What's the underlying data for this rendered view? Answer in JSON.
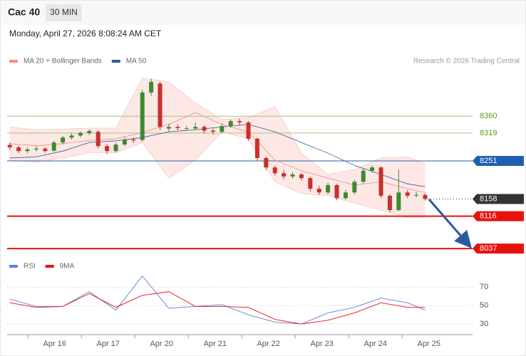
{
  "chart_data": {
    "type": "candlestick",
    "title": "Cac 40",
    "interval": "30 MIN",
    "subtitle": "Monday, April 27, 2026 8:08:24 AM CET",
    "attribution": "Research © 2026 Trading Central",
    "up_color": "#3c8a2e",
    "down_color": "#c8302a",
    "xlim": [
      -0.3,
      52.36
    ],
    "ylim": [
      8025,
      8470
    ],
    "xticks": [
      {
        "value": 5.08,
        "label": "Apr 16"
      },
      {
        "value": 11.13,
        "label": "Apr 17"
      },
      {
        "value": 17.18,
        "label": "Apr 20"
      },
      {
        "value": 23.23,
        "label": "Apr 21"
      },
      {
        "value": 29.27,
        "label": "Apr 22"
      },
      {
        "value": 35.32,
        "label": "Apr 23"
      },
      {
        "value": 41.37,
        "label": "Apr 24"
      },
      {
        "value": 47.42,
        "label": "Apr 25"
      }
    ],
    "candles": [
      [
        8290,
        8296,
        8278,
        8284
      ],
      [
        8284,
        8288,
        8270,
        8275
      ],
      [
        8275,
        8284,
        8270,
        8279
      ],
      [
        8279,
        8287,
        8274,
        8281
      ],
      [
        8281,
        8285,
        8271,
        8275
      ],
      [
        8276,
        8300,
        8273,
        8296
      ],
      [
        8296,
        8312,
        8292,
        8308
      ],
      [
        8308,
        8318,
        8303,
        8313
      ],
      [
        8313,
        8323,
        8309,
        8319
      ],
      [
        8319,
        8328,
        8314,
        8324
      ],
      [
        8322,
        8326,
        8282,
        8287
      ],
      [
        8287,
        8292,
        8268,
        8275
      ],
      [
        8275,
        8295,
        8272,
        8291
      ],
      [
        8291,
        8309,
        8287,
        8303
      ],
      [
        8303,
        8308,
        8295,
        8301
      ],
      [
        8302,
        8425,
        8298,
        8418
      ],
      [
        8418,
        8452,
        8410,
        8444
      ],
      [
        8440,
        8444,
        8326,
        8334
      ],
      [
        8330,
        8342,
        8322,
        8334
      ],
      [
        8334,
        8340,
        8325,
        8331
      ],
      [
        8331,
        8336,
        8325,
        8331
      ],
      [
        8330,
        8345,
        8326,
        8334
      ],
      [
        8334,
        8338,
        8318,
        8325
      ],
      [
        8325,
        8330,
        8315,
        8322
      ],
      [
        8322,
        8342,
        8318,
        8336
      ],
      [
        8336,
        8352,
        8332,
        8348
      ],
      [
        8348,
        8354,
        8338,
        8345
      ],
      [
        8345,
        8348,
        8300,
        8305
      ],
      [
        8305,
        8308,
        8250,
        8258
      ],
      [
        8258,
        8262,
        8228,
        8235
      ],
      [
        8235,
        8240,
        8215,
        8221
      ],
      [
        8221,
        8228,
        8206,
        8213
      ],
      [
        8213,
        8224,
        8208,
        8218
      ],
      [
        8218,
        8222,
        8203,
        8209
      ],
      [
        8209,
        8212,
        8176,
        8183
      ],
      [
        8183,
        8190,
        8168,
        8174
      ],
      [
        8174,
        8198,
        8170,
        8192
      ],
      [
        8192,
        8195,
        8155,
        8160
      ],
      [
        8160,
        8180,
        8156,
        8174
      ],
      [
        8174,
        8205,
        8170,
        8200
      ],
      [
        8200,
        8232,
        8196,
        8227
      ],
      [
        8227,
        8240,
        8222,
        8235
      ],
      [
        8235,
        8238,
        8160,
        8166
      ],
      [
        8166,
        8170,
        8125,
        8131
      ],
      [
        8131,
        8230,
        8128,
        8174
      ],
      [
        8174,
        8180,
        8160,
        8166
      ],
      [
        8166,
        8175,
        8162,
        8168
      ],
      [
        8168,
        8172,
        8154,
        8158
      ]
    ],
    "line_index": [
      0,
      3,
      6,
      9,
      12,
      15,
      18,
      21,
      24,
      27,
      30,
      33,
      36,
      39,
      42,
      45,
      47
    ],
    "legend": [
      {
        "name": "MA 20 + Bollinger Bands",
        "color": "#f08c84"
      },
      {
        "name": "MA 50",
        "color": "#2b5aa0"
      }
    ],
    "ma20": [
      8293,
      8288,
      8293,
      8301,
      8305,
      8320,
      8340,
      8369,
      8340,
      8322,
      8253,
      8227,
      8209,
      8192,
      8200,
      8183,
      8174
    ],
    "ma50": [
      8258,
      8261,
      8275,
      8296,
      8300,
      8308,
      8322,
      8327,
      8334,
      8340,
      8322,
      8296,
      8270,
      8240,
      8218,
      8195,
      8188
    ],
    "band_upper": [
      8334,
      8327,
      8329,
      8331,
      8331,
      8453,
      8444,
      8392,
      8352,
      8357,
      8383,
      8270,
      8218,
      8230,
      8258,
      8261,
      8244
    ],
    "band_lower": [
      8253,
      8248,
      8258,
      8271,
      8271,
      8296,
      8209,
      8253,
      8322,
      8305,
      8200,
      8171,
      8166,
      8148,
      8131,
      8113,
      8113
    ],
    "band_color": "#fde4e2",
    "levels": [
      {
        "value": 8360,
        "color": "#a9c47a",
        "box": false,
        "width": 1
      },
      {
        "value": 8319,
        "color": "#a9c47a",
        "box": false,
        "width": 1
      },
      {
        "value": 8251,
        "color": "#1f5fb0",
        "box": true,
        "width": 1
      },
      {
        "value": 8158,
        "color": "#333333",
        "box": true,
        "width": 1,
        "dotted": true
      },
      {
        "value": 8116,
        "color": "#e8120c",
        "box": true,
        "width": 2
      },
      {
        "value": 8037,
        "color": "#e8120c",
        "box": true,
        "width": 2
      }
    ],
    "rsi": {
      "legend": [
        {
          "name": "RSI",
          "color": "#5b84d6"
        },
        {
          "name": "9MA",
          "color": "#e8120c"
        }
      ],
      "ylim": [
        20,
        84
      ],
      "yticks": [
        30,
        50,
        70
      ],
      "rsi": [
        57,
        49,
        49,
        65,
        45,
        82,
        47,
        49,
        51,
        40,
        32,
        30,
        42,
        48,
        58,
        53,
        45
      ],
      "ma9": [
        53,
        48,
        49,
        63,
        48,
        61,
        65,
        49,
        49,
        48,
        35,
        30,
        34,
        42,
        53,
        48,
        48
      ]
    }
  }
}
